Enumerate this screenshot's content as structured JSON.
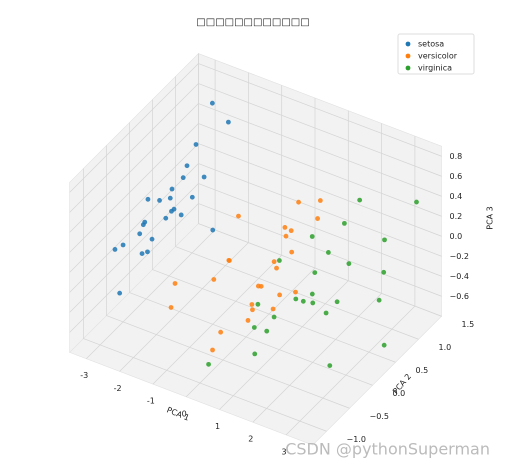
{
  "chart_data": {
    "type": "scatter3d",
    "title": "□□□□□□□□□□□□",
    "xlabel": "PCA 1",
    "ylabel": "PCA 2",
    "zlabel": "PCA 3",
    "xlim": [
      -3.5,
      3.8
    ],
    "ylim": [
      -1.3,
      1.5
    ],
    "zlim": [
      -0.8,
      0.9
    ],
    "xticks": [
      -3,
      -2,
      -1,
      0,
      1,
      2,
      3
    ],
    "yticks": [
      {
        "value": -1,
        "label": "−1.0"
      },
      {
        "value": -0.5,
        "label": "−0.5"
      },
      {
        "value": 0,
        "label": "0.0"
      },
      {
        "value": 0.5,
        "label": "0.5"
      },
      {
        "value": 1,
        "label": "1.0"
      },
      {
        "value": 1.5,
        "label": "1.5"
      }
    ],
    "zticks": [
      {
        "value": -0.6,
        "label": "−0.6"
      },
      {
        "value": -0.4,
        "label": "−0.4"
      },
      {
        "value": -0.2,
        "label": "−0.2"
      },
      {
        "value": 0,
        "label": "0.0"
      },
      0.2,
      0.4,
      0.6,
      0.8
    ],
    "grid": true,
    "legend": "upper right",
    "series": [
      {
        "name": "setosa",
        "color": "#1f77b4",
        "x": [
          -2.68,
          -2.71,
          -2.89,
          -2.75,
          -2.73,
          -2.28,
          -2.82,
          -2.63,
          -2.89,
          -2.67,
          -2.51,
          -2.61,
          -2.79,
          -3.23,
          -2.64,
          -2.38,
          -2.62,
          -2.65,
          -2.2,
          -2.59,
          -2.31,
          -2.54,
          -3.22,
          -2.3,
          -3.2
        ],
        "y": [
          0.32,
          -0.18,
          -0.14,
          -0.32,
          0.33,
          0.74,
          -0.09,
          0.16,
          -0.58,
          -0.11,
          0.65,
          0.01,
          -0.24,
          -0.51,
          1.18,
          1.34,
          0.81,
          0.31,
          0.87,
          0.51,
          0.39,
          0.43,
          0.13,
          0.1,
          -0.43
        ],
        "z": [
          -0.03,
          -0.21,
          0.02,
          0.03,
          0.09,
          0.17,
          0.26,
          -0.02,
          0.02,
          -0.11,
          -0.02,
          0.23,
          -0.21,
          -0.1,
          0.66,
          0.43,
          0.42,
          0.2,
          -0.41,
          0.23,
          0.44,
          -0.1,
          -0.12,
          0.14,
          -0.57
        ]
      },
      {
        "name": "versicolor",
        "color": "#ff7f0e",
        "x": [
          1.28,
          0.93,
          1.46,
          0.18,
          1.09,
          0.64,
          1.1,
          -0.75,
          1.04,
          -0.01,
          -0.51,
          0.51,
          0.26,
          0.98,
          -0.17,
          0.93,
          0.66,
          0.23,
          0.94,
          0.04,
          1.12,
          0.36,
          1.3,
          0.92,
          0.71
        ],
        "y": [
          0.69,
          0.32,
          0.5,
          -0.83,
          0.08,
          -0.42,
          0.28,
          -1.0,
          0.23,
          -0.72,
          -1.26,
          -0.1,
          -0.55,
          -0.12,
          -0.25,
          0.47,
          -0.35,
          -0.33,
          -0.54,
          -0.58,
          -0.08,
          0.07,
          -0.33,
          0.18,
          0.15
        ],
        "z": [
          0.41,
          0.02,
          0.34,
          0.18,
          0.31,
          -0.36,
          -0.34,
          0.1,
          0.29,
          -0.6,
          0.01,
          -0.18,
          0.25,
          -0.34,
          0.06,
          0.45,
          -0.23,
          0.59,
          -0.16,
          -0.48,
          -0.2,
          -0.28,
          0.27,
          0.33,
          -0.09
        ]
      },
      {
        "name": "virginica",
        "color": "#2ca02c",
        "x": [
          2.53,
          1.41,
          2.62,
          1.97,
          2.35,
          3.4,
          0.52,
          2.93,
          2.32,
          2.92,
          1.66,
          1.8,
          2.17,
          1.34,
          1.59,
          1.9,
          1.95,
          3.49,
          3.79,
          1.3,
          2.43,
          1.2,
          3.5,
          1.39,
          2.28
        ],
        "y": [
          -0.01,
          -0.57,
          0.34,
          -0.18,
          0.04,
          0.55,
          -1.19,
          0.35,
          -0.24,
          0.78,
          0.24,
          -0.22,
          0.22,
          -0.78,
          -0.54,
          0.12,
          0.04,
          1.18,
          0.26,
          -0.76,
          0.38,
          -0.61,
          0.46,
          -0.28,
          0.33
        ],
        "z": [
          -0.76,
          -0.3,
          0.11,
          -0.11,
          -0.28,
          0.35,
          -0.46,
          0.78,
          0.61,
          -0.42,
          -0.27,
          -0.09,
          0.22,
          -0.44,
          -0.15,
          0.03,
          -0.23,
          0.45,
          -0.52,
          -0.19,
          0.47,
          -0.04,
          0.08,
          0.27,
          -0.31
        ]
      }
    ],
    "watermark": "CSDN @pythonSuperman"
  }
}
